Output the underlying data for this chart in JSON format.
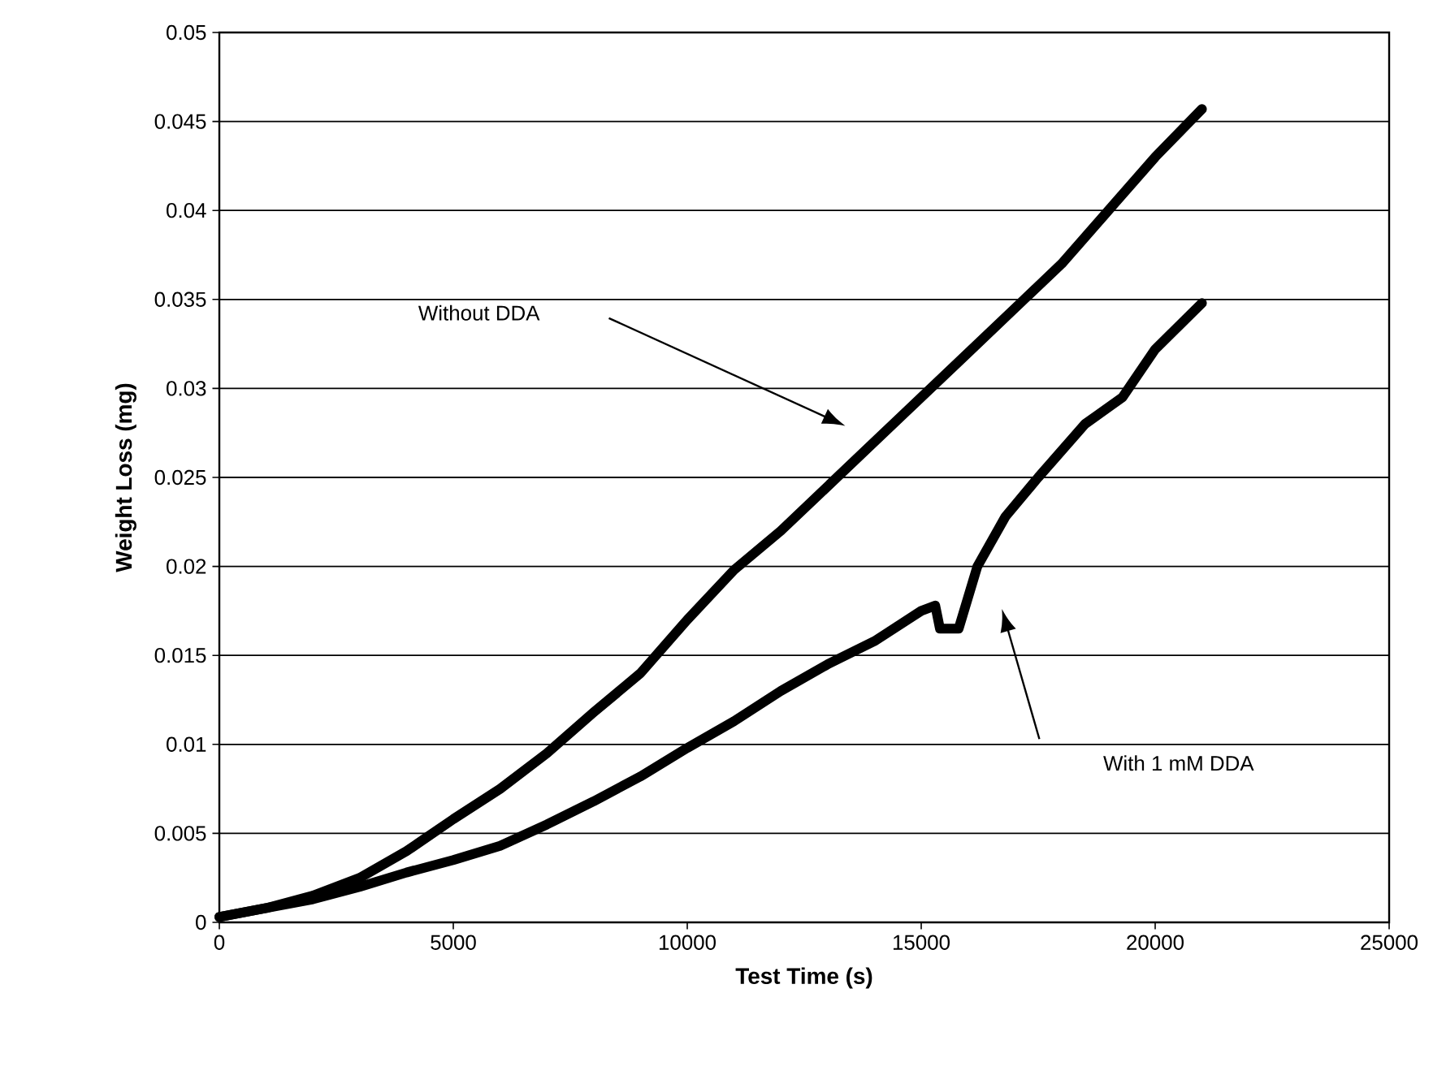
{
  "chart_data": {
    "type": "line",
    "xlabel": "Test Time (s)",
    "ylabel": "Weight Loss (mg)",
    "xlim": [
      0,
      25000
    ],
    "ylim": [
      0,
      0.05
    ],
    "xticks": [
      0,
      5000,
      10000,
      15000,
      20000,
      25000
    ],
    "yticks": [
      0,
      0.005,
      0.01,
      0.015,
      0.02,
      0.025,
      0.03,
      0.035,
      0.04,
      0.045,
      0.05
    ],
    "grid": "y",
    "series": [
      {
        "color": "#000000",
        "x": [
          0,
          1000,
          2000,
          3000,
          4000,
          5000,
          6000,
          7000,
          8000,
          9000,
          10000,
          11000,
          12000,
          13000,
          14000,
          15000,
          16000,
          17000,
          18000,
          19000,
          20000,
          21000
        ],
        "values": [
          0.0003,
          0.0008,
          0.0015,
          0.0025,
          0.004,
          0.0058,
          0.0075,
          0.0095,
          0.0118,
          0.014,
          0.017,
          0.0198,
          0.022,
          0.0245,
          0.027,
          0.0295,
          0.032,
          0.0345,
          0.037,
          0.04,
          0.043,
          0.0457
        ]
      },
      {
        "color": "#000000",
        "x": [
          0,
          1000,
          2000,
          3000,
          4000,
          5000,
          6000,
          7000,
          8000,
          9000,
          10000,
          11000,
          12000,
          13000,
          14000,
          15000,
          15300,
          15400,
          15800,
          16200,
          16800,
          17500,
          18500,
          19300,
          20000,
          20500,
          21000
        ],
        "values": [
          0.0003,
          0.0008,
          0.0013,
          0.002,
          0.0028,
          0.0035,
          0.0043,
          0.0055,
          0.0068,
          0.0082,
          0.0098,
          0.0113,
          0.013,
          0.0145,
          0.0158,
          0.0175,
          0.0178,
          0.0165,
          0.0165,
          0.02,
          0.0228,
          0.025,
          0.028,
          0.0295,
          0.0322,
          0.0335,
          0.0348
        ]
      }
    ],
    "annotations": [
      "Without DDA",
      "With 1 mM DDA"
    ]
  }
}
